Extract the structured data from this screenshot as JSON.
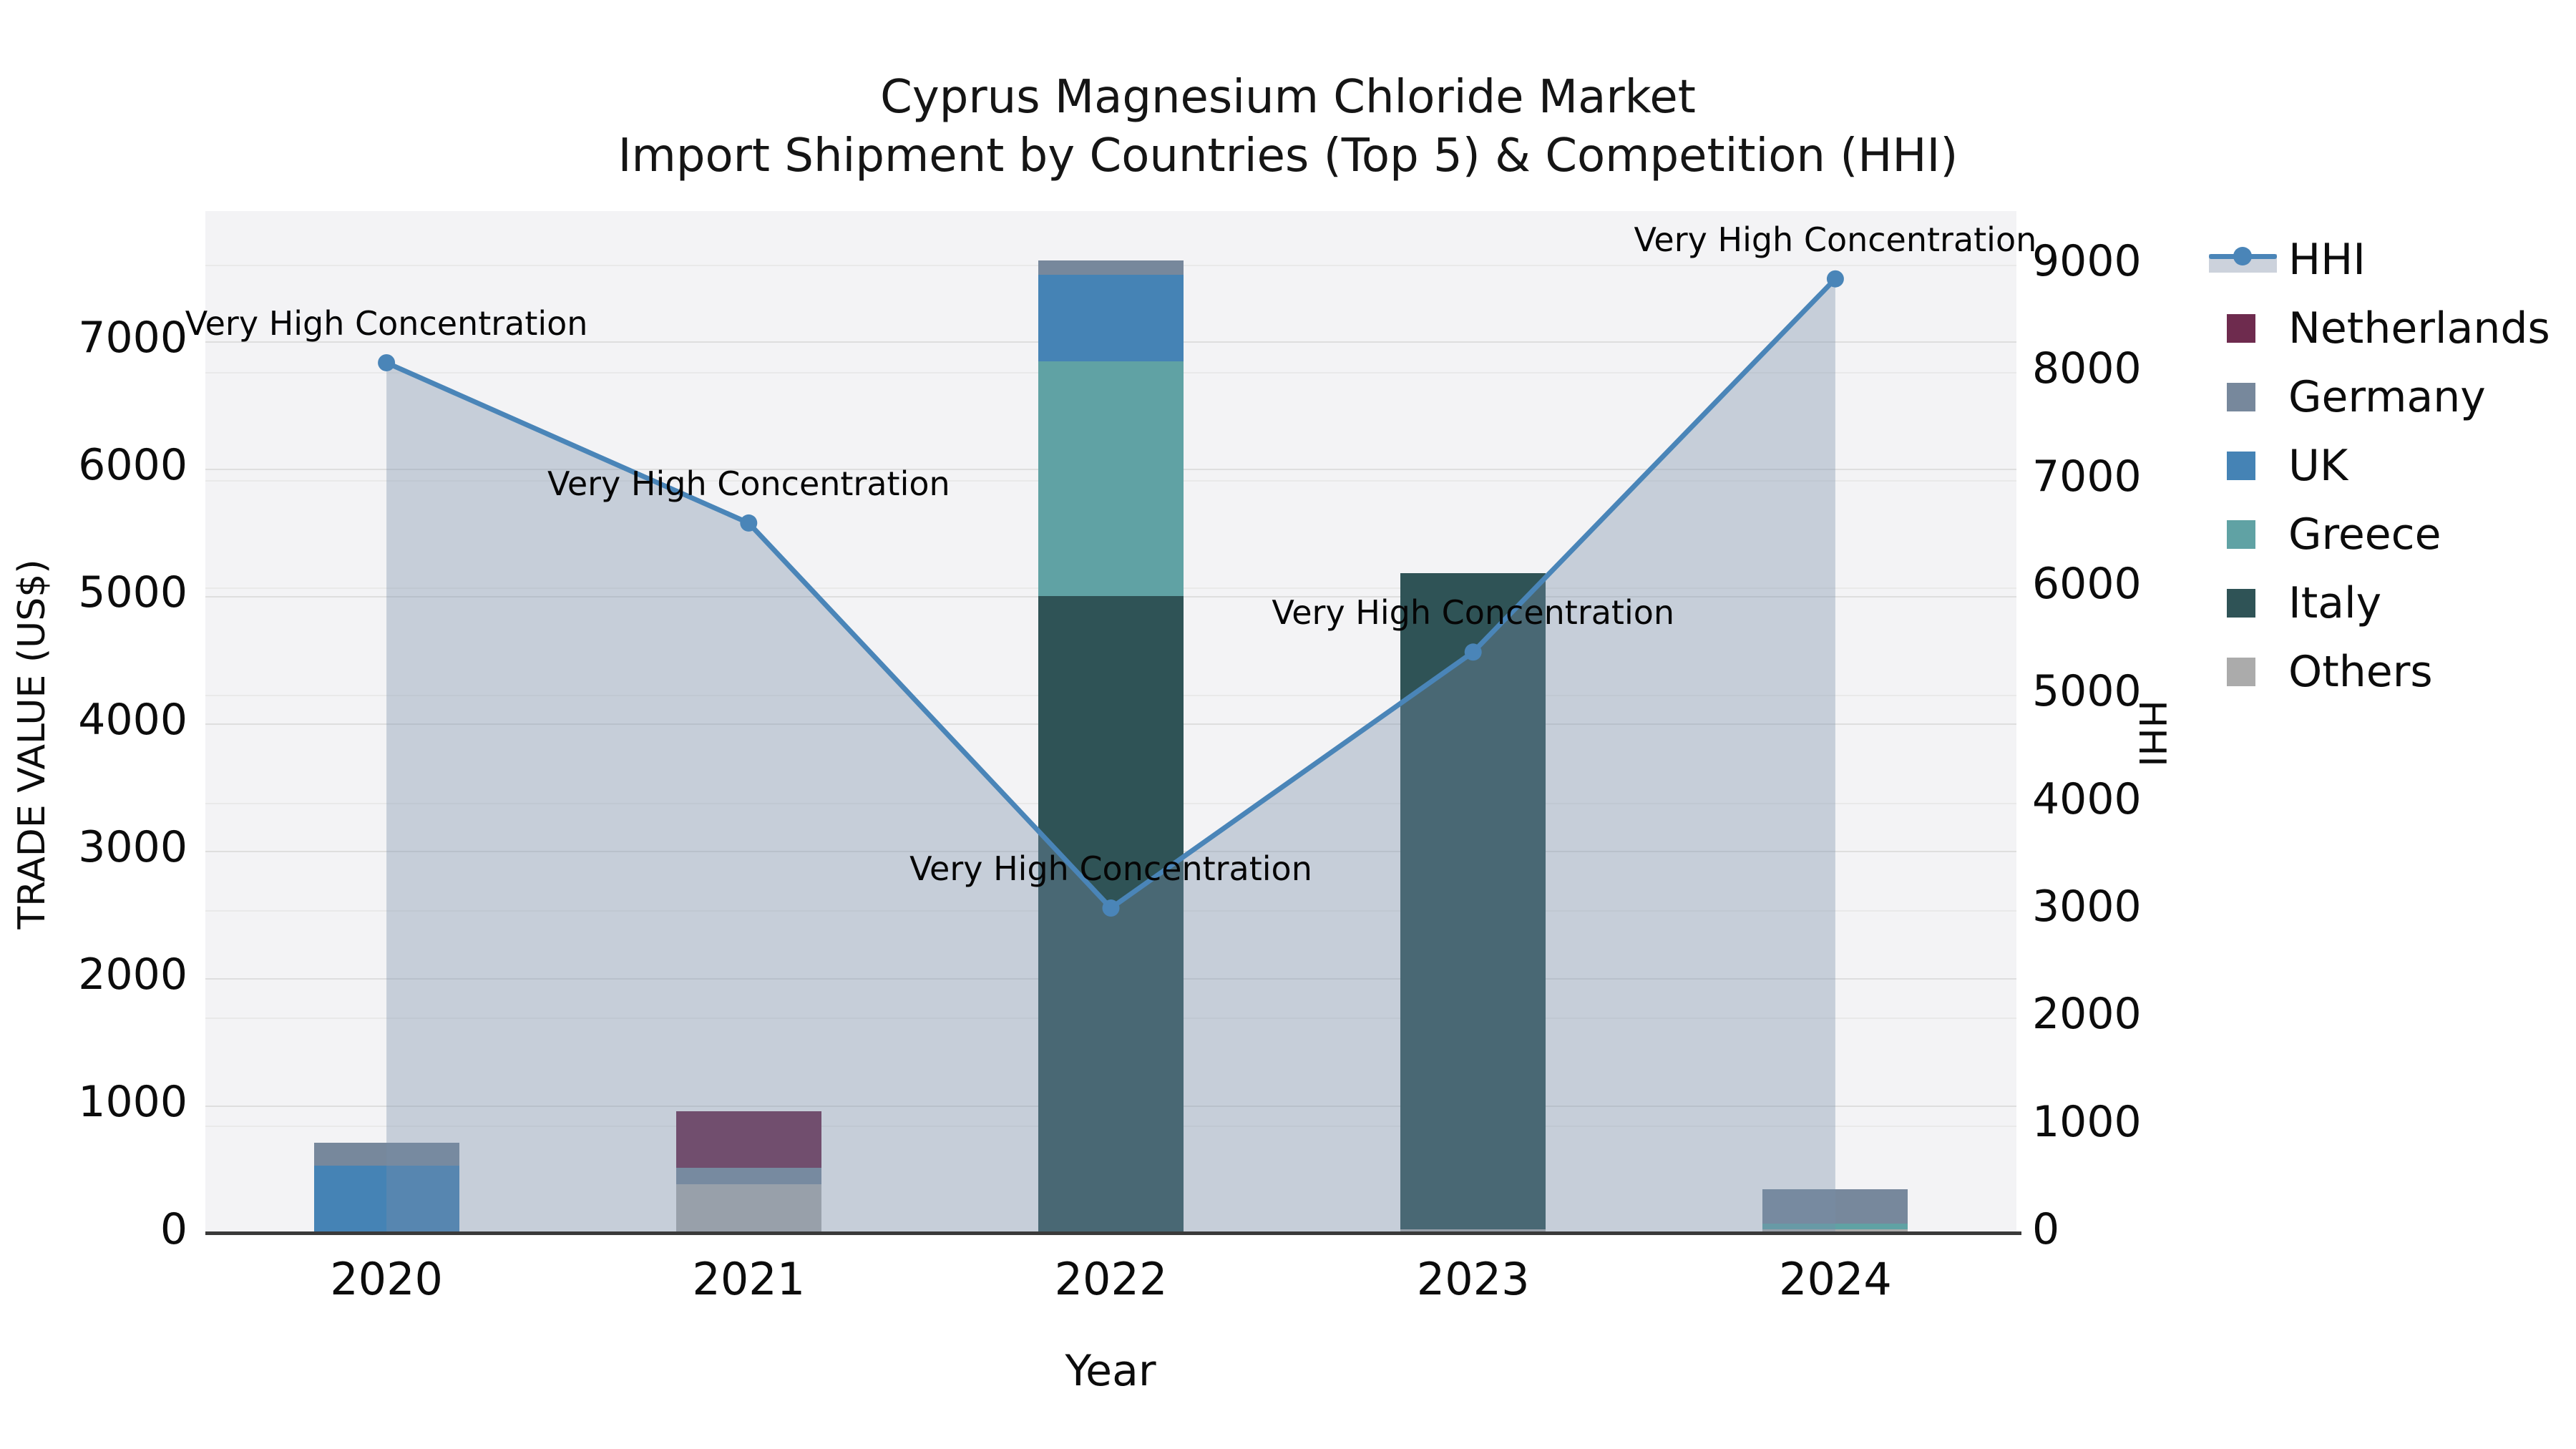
{
  "title": {
    "line1": "Cyprus Magnesium Chloride Market",
    "line2": "Import Shipment by Countries (Top 5) & Competition (HHI)"
  },
  "axes": {
    "x": {
      "label": "Year",
      "categories": [
        "2020",
        "2021",
        "2022",
        "2023",
        "2024"
      ]
    },
    "y_left": {
      "label": "TRADE VALUE (US$)",
      "ticks": [
        "0",
        "1000",
        "2000",
        "3000",
        "4000",
        "5000",
        "6000",
        "7000"
      ]
    },
    "y_right": {
      "label": "HHI",
      "ticks": [
        "0",
        "1000",
        "2000",
        "3000",
        "4000",
        "5000",
        "6000",
        "7000",
        "8000",
        "9000"
      ]
    }
  },
  "annotation_text": "Very High Concentration",
  "colors": {
    "hhi_line": "#4a85b8",
    "hhi_area_fill": "rgba(120,140,170,0.36)",
    "netherlands": "#6e2b4e",
    "germany": "#77889c",
    "uk": "#4583b5",
    "greece": "#60a2a4",
    "italy": "#2f5356",
    "others": "#ababab",
    "plot_background": "#f3f3f5",
    "axis_line": "#3a3a3a"
  },
  "chart_data": {
    "type": "bar",
    "stacked": true,
    "categories": [
      "2020",
      "2021",
      "2022",
      "2023",
      "2024"
    ],
    "series": [
      {
        "name": "HHI",
        "type": "line",
        "axis": "right",
        "color": "#4a85b8",
        "area_fill": "rgba(120,140,170,0.36)",
        "values": [
          8090,
          6600,
          3020,
          5400,
          8870
        ]
      },
      {
        "name": "Netherlands",
        "type": "bar",
        "axis": "left",
        "color": "#6e2b4e",
        "values": [
          0,
          445,
          0,
          0,
          0
        ]
      },
      {
        "name": "Germany",
        "type": "bar",
        "axis": "left",
        "color": "#77889c",
        "values": [
          180,
          130,
          110,
          0,
          270
        ]
      },
      {
        "name": "UK",
        "type": "bar",
        "axis": "left",
        "color": "#4583b5",
        "values": [
          530,
          0,
          680,
          0,
          0
        ]
      },
      {
        "name": "Greece",
        "type": "bar",
        "axis": "left",
        "color": "#60a2a4",
        "values": [
          0,
          0,
          1840,
          0,
          45
        ]
      },
      {
        "name": "Italy",
        "type": "bar",
        "axis": "left",
        "color": "#2f5356",
        "values": [
          0,
          0,
          5000,
          5150,
          0
        ]
      },
      {
        "name": "Others",
        "type": "bar",
        "axis": "left",
        "color": "#ababab",
        "values": [
          0,
          380,
          0,
          30,
          30
        ]
      }
    ],
    "stack_order_bottom_to_top": [
      "Others",
      "Italy",
      "Greece",
      "UK",
      "Germany",
      "Netherlands"
    ],
    "bar_totals": [
      710,
      955,
      7630,
      5180,
      345
    ],
    "title": "Cyprus Magnesium Chloride Market — Import Shipment by Countries (Top 5) & Competition (HHI)",
    "xlabel": "Year",
    "ylabel_left": "TRADE VALUE (US$)",
    "ylabel_right": "HHI",
    "ylim_left": [
      0,
      8020
    ],
    "ylim_right": [
      0,
      9500
    ],
    "grid": true,
    "legend_position": "right",
    "annotations": [
      {
        "category": "2020",
        "text": "Very High Concentration"
      },
      {
        "category": "2021",
        "text": "Very High Concentration"
      },
      {
        "category": "2022",
        "text": "Very High Concentration"
      },
      {
        "category": "2023",
        "text": "Very High Concentration"
      },
      {
        "category": "2024",
        "text": "Very High Concentration"
      }
    ]
  }
}
